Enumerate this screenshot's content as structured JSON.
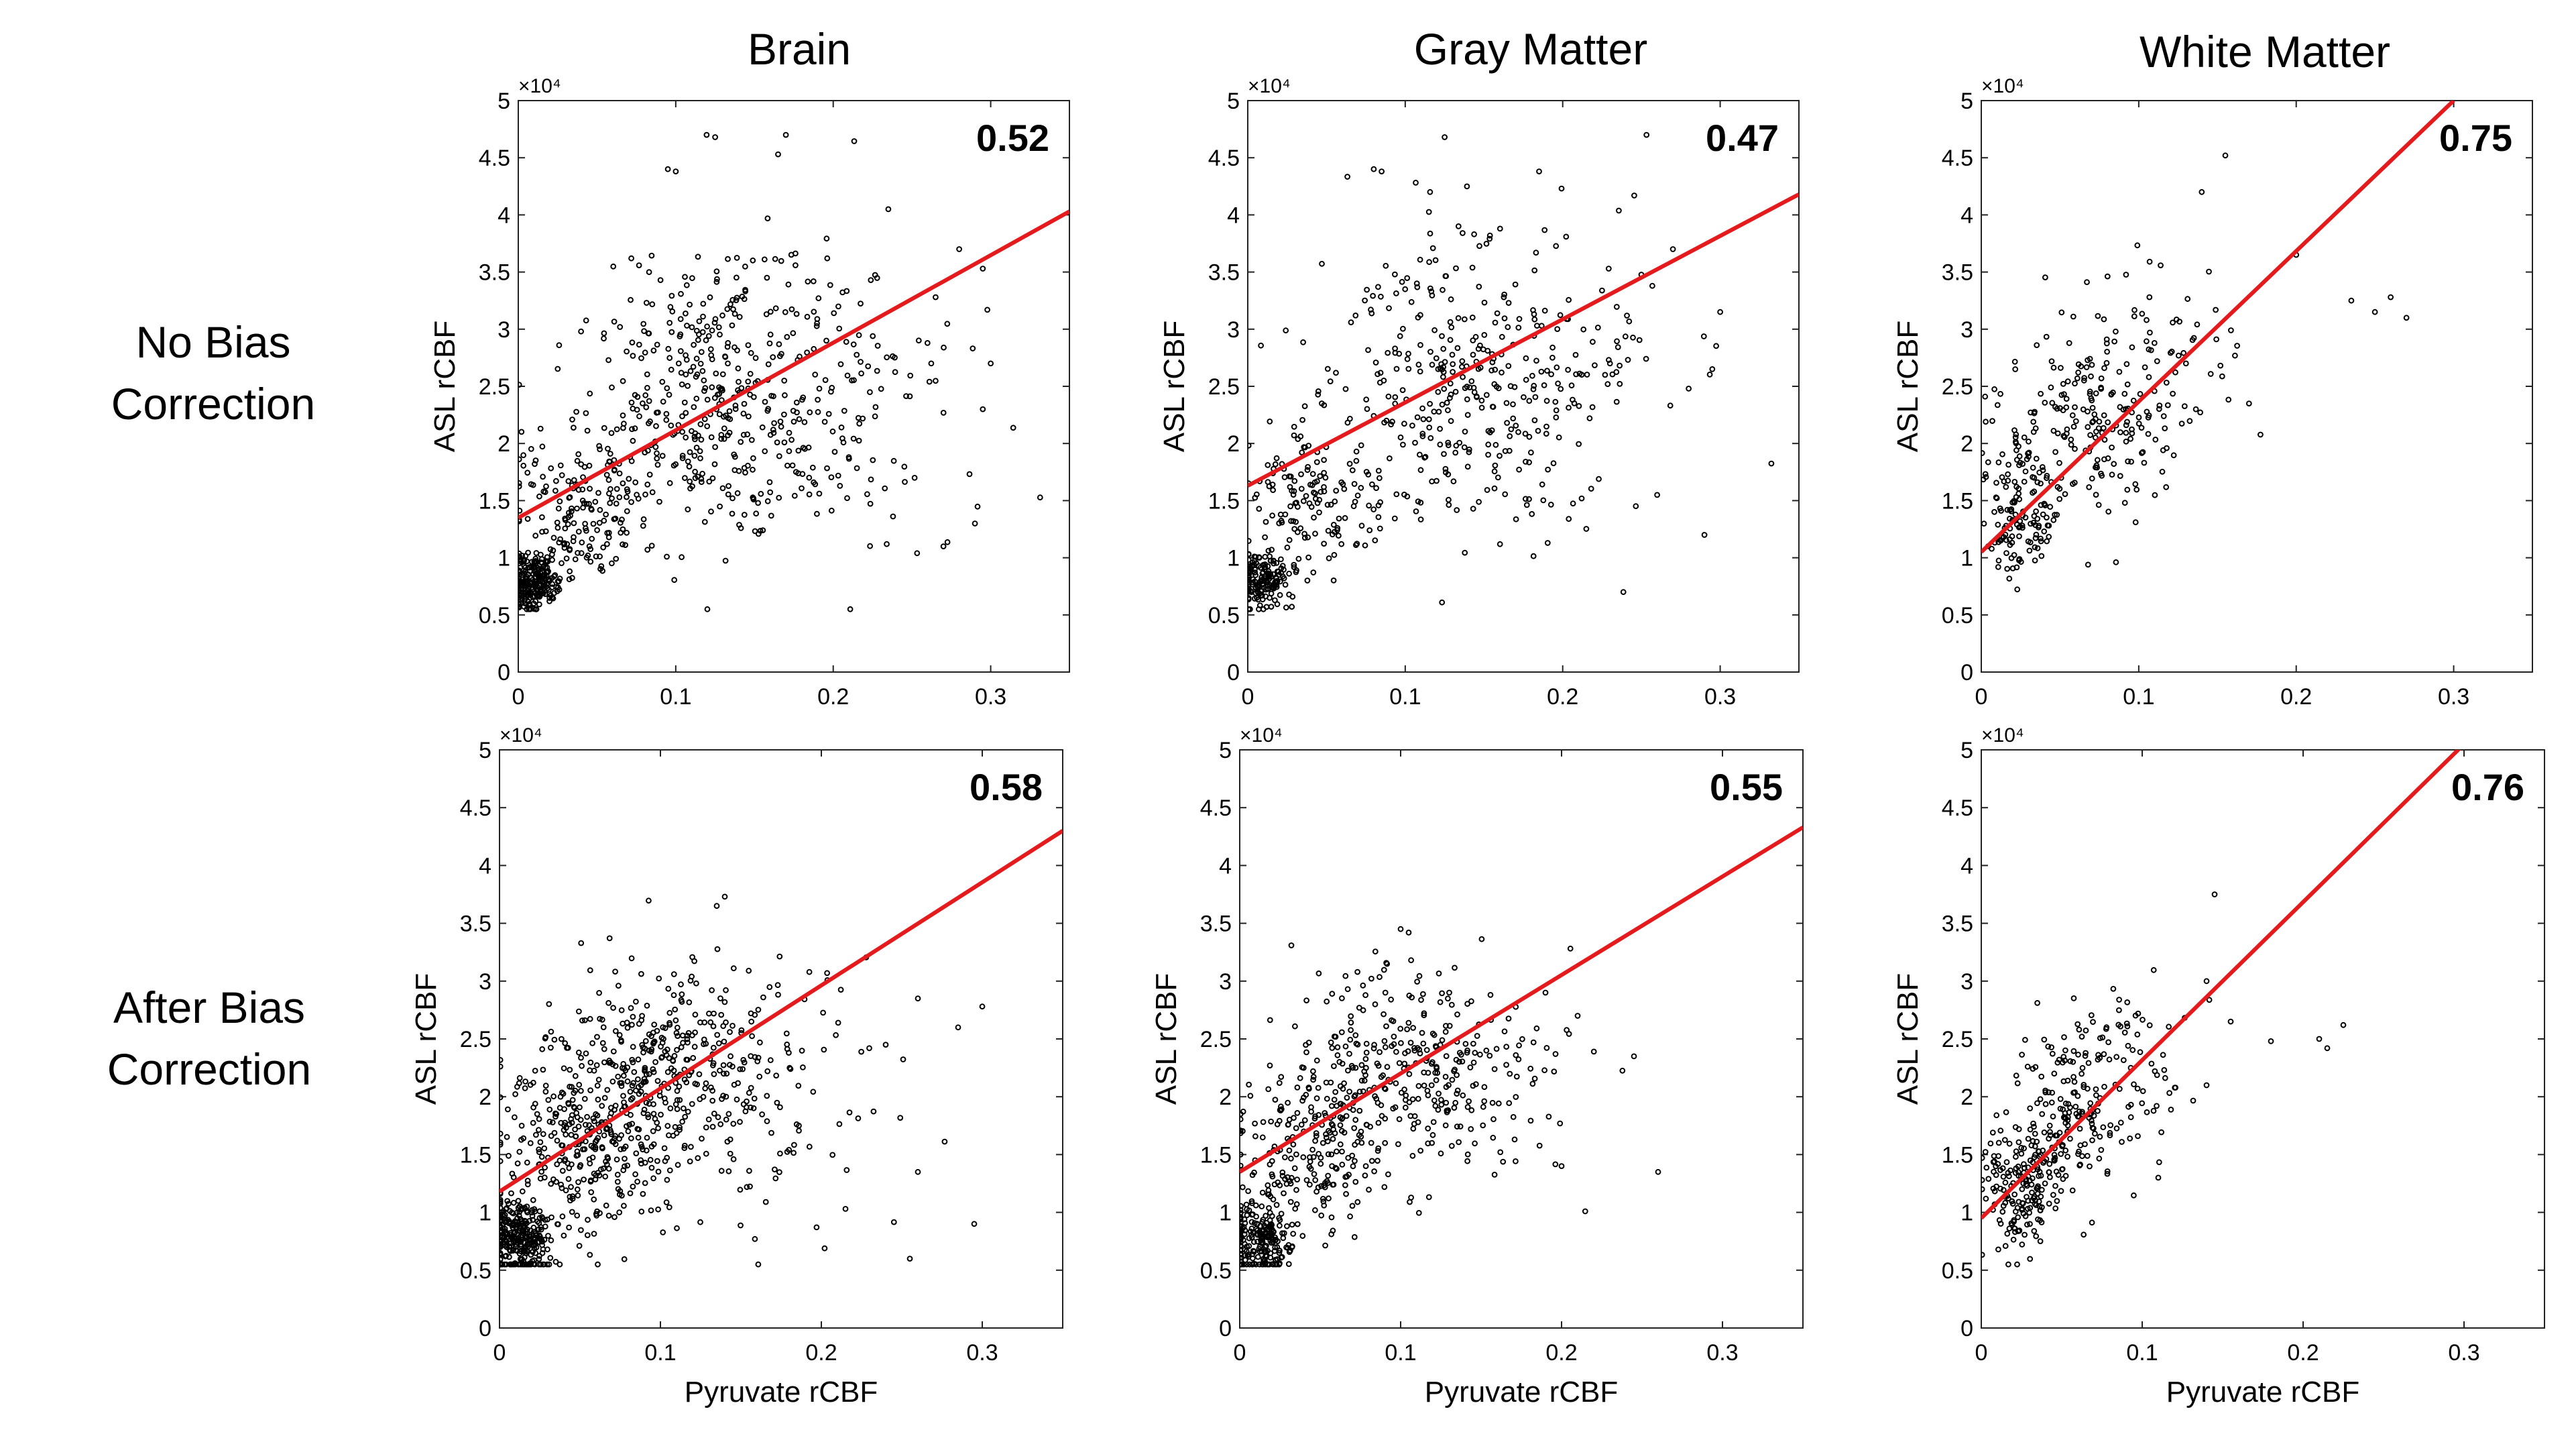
{
  "figure": {
    "column_titles": [
      "Brain",
      "Gray Matter",
      "White Matter"
    ],
    "row_labels": [
      {
        "line1": "No Bias",
        "line2": "Correction"
      },
      {
        "line1": "After Bias",
        "line2": "Correction"
      }
    ],
    "marker_color": "#000000",
    "fit_color": "#e41a1c"
  },
  "chart_data": [
    {
      "id": "brain-no-bias",
      "type": "scatter",
      "row": 0,
      "col": 0,
      "title": "Brain",
      "row_label": "No Bias Correction",
      "xlabel": "",
      "ylabel": "ASL rCBF",
      "xlim": [
        0,
        0.35
      ],
      "ylim": [
        0,
        50000
      ],
      "xticks": [
        0,
        0.1,
        0.2,
        0.3
      ],
      "xtick_labels": [
        "0",
        "0.1",
        "0.2",
        "0.3"
      ],
      "yticks": [
        0,
        5000,
        10000,
        15000,
        20000,
        25000,
        30000,
        35000,
        40000,
        45000,
        50000
      ],
      "ytick_labels": [
        "0",
        "0.5",
        "1",
        "1.5",
        "2",
        "2.5",
        "3",
        "3.5",
        "4",
        "4.5",
        "5"
      ],
      "y_exponent_label": "×10⁴",
      "correlation_label": "0.52",
      "fit_line": {
        "x": [
          0,
          0.35
        ],
        "y": [
          13500,
          40300
        ]
      },
      "point_cloud": {
        "count": 900,
        "seed": 11,
        "components": [
          {
            "weight": 0.22,
            "mean": [
              0.01,
              8000
            ],
            "sd": [
              0.008,
              1300
            ]
          },
          {
            "weight": 0.18,
            "mean": [
              0.04,
              14500
            ],
            "sd": [
              0.02,
              3000
            ]
          },
          {
            "weight": 0.45,
            "mean": [
              0.12,
              24000
            ],
            "sd": [
              0.045,
              6500
            ]
          },
          {
            "weight": 0.15,
            "mean": [
              0.19,
              25000
            ],
            "sd": [
              0.05,
              7000
            ]
          }
        ]
      },
      "extra_points": {
        "x": [
          0.095,
          0.1,
          0.125,
          0.165,
          0.235,
          0.265,
          0.28,
          0.295,
          0.3,
          0.27,
          0.29,
          0.295
        ],
        "y": [
          44000,
          43800,
          46800,
          45300,
          40500,
          32800,
          37000,
          35300,
          27000,
          11000,
          13000,
          23000
        ]
      }
    },
    {
      "id": "gray-no-bias",
      "type": "scatter",
      "row": 0,
      "col": 1,
      "title": "Gray Matter",
      "row_label": "No Bias Correction",
      "xlabel": "",
      "ylabel": "ASL rCBF",
      "xlim": [
        0,
        0.35
      ],
      "ylim": [
        0,
        50000
      ],
      "xticks": [
        0,
        0.1,
        0.2,
        0.3
      ],
      "xtick_labels": [
        "0",
        "0.1",
        "0.2",
        "0.3"
      ],
      "yticks": [
        0,
        5000,
        10000,
        15000,
        20000,
        25000,
        30000,
        35000,
        40000,
        45000,
        50000
      ],
      "ytick_labels": [
        "0",
        "0.5",
        "1",
        "1.5",
        "2",
        "2.5",
        "3",
        "3.5",
        "4",
        "4.5",
        "5"
      ],
      "y_exponent_label": "×10⁴",
      "correlation_label": "0.47",
      "fit_line": {
        "x": [
          0,
          0.35
        ],
        "y": [
          16300,
          41800
        ]
      },
      "point_cloud": {
        "count": 700,
        "seed": 23,
        "components": [
          {
            "weight": 0.22,
            "mean": [
              0.01,
              8000
            ],
            "sd": [
              0.008,
              1300
            ]
          },
          {
            "weight": 0.2,
            "mean": [
              0.04,
              15000
            ],
            "sd": [
              0.02,
              3200
            ]
          },
          {
            "weight": 0.43,
            "mean": [
              0.12,
              24500
            ],
            "sd": [
              0.045,
              6500
            ]
          },
          {
            "weight": 0.15,
            "mean": [
              0.19,
              25000
            ],
            "sd": [
              0.05,
              7000
            ]
          }
        ]
      },
      "extra_points": {
        "x": [
          0.08,
          0.085,
          0.125,
          0.185,
          0.27,
          0.3,
          0.295,
          0.28,
          0.26,
          0.23,
          0.29
        ],
        "y": [
          44000,
          43800,
          46800,
          43800,
          37000,
          31500,
          26500,
          24800,
          15500,
          27000,
          12000
        ]
      }
    },
    {
      "id": "white-no-bias",
      "type": "scatter",
      "row": 0,
      "col": 2,
      "title": "White Matter",
      "row_label": "No Bias Correction",
      "xlabel": "",
      "ylabel": "ASL rCBF",
      "xlim": [
        0,
        0.35
      ],
      "ylim": [
        0,
        50000
      ],
      "xticks": [
        0,
        0.1,
        0.2,
        0.3
      ],
      "xtick_labels": [
        "0",
        "0.1",
        "0.2",
        "0.3"
      ],
      "yticks": [
        0,
        5000,
        10000,
        15000,
        20000,
        25000,
        30000,
        35000,
        40000,
        45000,
        50000
      ],
      "ytick_labels": [
        "0",
        "0.5",
        "1",
        "1.5",
        "2",
        "2.5",
        "3",
        "3.5",
        "4",
        "4.5",
        "5"
      ],
      "y_exponent_label": "×10⁴",
      "correlation_label": "0.75",
      "fit_line": {
        "x": [
          0,
          0.3
        ],
        "y": [
          10500,
          50000
        ]
      },
      "point_cloud": {
        "count": 380,
        "seed": 37,
        "components": [
          {
            "weight": 0.4,
            "mean": [
              0.025,
              14000
            ],
            "sd": [
              0.012,
              3000
            ]
          },
          {
            "weight": 0.45,
            "mean": [
              0.07,
              21500
            ],
            "sd": [
              0.025,
              4200
            ]
          },
          {
            "weight": 0.15,
            "mean": [
              0.12,
              28000
            ],
            "sd": [
              0.025,
              4000
            ]
          }
        ]
      },
      "extra_points": {
        "x": [
          0.155,
          0.14,
          0.2,
          0.235,
          0.25,
          0.26,
          0.27,
          0.13,
          0.17
        ],
        "y": [
          45200,
          42000,
          36500,
          32500,
          31500,
          32800,
          31000,
          27000,
          23500
        ]
      }
    },
    {
      "id": "brain-after-bias",
      "type": "scatter",
      "row": 1,
      "col": 0,
      "title": "Brain",
      "row_label": "After Bias Correction",
      "xlabel": "Pyruvate rCBF",
      "ylabel": "ASL rCBF",
      "xlim": [
        0,
        0.35
      ],
      "ylim": [
        0,
        50000
      ],
      "xticks": [
        0,
        0.1,
        0.2,
        0.3
      ],
      "xtick_labels": [
        "0",
        "0.1",
        "0.2",
        "0.3"
      ],
      "yticks": [
        0,
        5000,
        10000,
        15000,
        20000,
        25000,
        30000,
        35000,
        40000,
        45000,
        50000
      ],
      "ytick_labels": [
        "0",
        "0.5",
        "1",
        "1.5",
        "2",
        "2.5",
        "3",
        "3.5",
        "4",
        "4.5",
        "5"
      ],
      "y_exponent_label": "×10⁴",
      "correlation_label": "0.58",
      "fit_line": {
        "x": [
          0,
          0.35
        ],
        "y": [
          11800,
          43000
        ]
      },
      "point_cloud": {
        "count": 1000,
        "seed": 51,
        "components": [
          {
            "weight": 0.3,
            "mean": [
              0.012,
              7500
            ],
            "sd": [
              0.01,
              1800
            ]
          },
          {
            "weight": 0.25,
            "mean": [
              0.05,
              15000
            ],
            "sd": [
              0.025,
              3500
            ]
          },
          {
            "weight": 0.35,
            "mean": [
              0.1,
              22000
            ],
            "sd": [
              0.035,
              4500
            ]
          },
          {
            "weight": 0.1,
            "mean": [
              0.16,
              20000
            ],
            "sd": [
              0.04,
              5500
            ]
          }
        ]
      },
      "extra_points": {
        "x": [
          0.14,
          0.135,
          0.26,
          0.3,
          0.285,
          0.26,
          0.295,
          0.255,
          0.215,
          0.24
        ],
        "y": [
          37300,
          36500,
          28500,
          27800,
          26000,
          13500,
          9000,
          6000,
          10300,
          24500
        ]
      }
    },
    {
      "id": "gray-after-bias",
      "type": "scatter",
      "row": 1,
      "col": 1,
      "title": "Gray Matter",
      "row_label": "After Bias Correction",
      "xlabel": "Pyruvate rCBF",
      "ylabel": "ASL rCBF",
      "xlim": [
        0,
        0.35
      ],
      "ylim": [
        0,
        50000
      ],
      "xticks": [
        0,
        0.1,
        0.2,
        0.3
      ],
      "xtick_labels": [
        "0",
        "0.1",
        "0.2",
        "0.3"
      ],
      "yticks": [
        0,
        5000,
        10000,
        15000,
        20000,
        25000,
        30000,
        35000,
        40000,
        45000,
        50000
      ],
      "ytick_labels": [
        "0",
        "0.5",
        "1",
        "1.5",
        "2",
        "2.5",
        "3",
        "3.5",
        "4",
        "4.5",
        "5"
      ],
      "y_exponent_label": "×10⁴",
      "correlation_label": "0.55",
      "fit_line": {
        "x": [
          0,
          0.35
        ],
        "y": [
          13500,
          43300
        ]
      },
      "point_cloud": {
        "count": 750,
        "seed": 67,
        "components": [
          {
            "weight": 0.28,
            "mean": [
              0.012,
              7500
            ],
            "sd": [
              0.01,
              1800
            ]
          },
          {
            "weight": 0.27,
            "mean": [
              0.05,
              16000
            ],
            "sd": [
              0.025,
              3600
            ]
          },
          {
            "weight": 0.35,
            "mean": [
              0.1,
              22500
            ],
            "sd": [
              0.035,
              4500
            ]
          },
          {
            "weight": 0.1,
            "mean": [
              0.15,
              21000
            ],
            "sd": [
              0.035,
              5000
            ]
          }
        ]
      },
      "extra_points": {
        "x": [
          0.1,
          0.105,
          0.19,
          0.245,
          0.26,
          0.2,
          0.21
        ],
        "y": [
          34500,
          34200,
          29000,
          23500,
          13500,
          14000,
          27000
        ]
      }
    },
    {
      "id": "white-after-bias",
      "type": "scatter",
      "row": 1,
      "col": 2,
      "title": "White Matter",
      "row_label": "After Bias Correction",
      "xlabel": "Pyruvate rCBF",
      "ylabel": "ASL rCBF",
      "xlim": [
        0,
        0.35
      ],
      "ylim": [
        0,
        50000
      ],
      "xticks": [
        0,
        0.1,
        0.2,
        0.3
      ],
      "xtick_labels": [
        "0",
        "0.1",
        "0.2",
        "0.3"
      ],
      "yticks": [
        0,
        5000,
        10000,
        15000,
        20000,
        25000,
        30000,
        35000,
        40000,
        45000,
        50000
      ],
      "ytick_labels": [
        "0",
        "0.5",
        "1",
        "1.5",
        "2",
        "2.5",
        "3",
        "3.5",
        "4",
        "4.5",
        "5"
      ],
      "y_exponent_label": "×10⁴",
      "correlation_label": "0.76",
      "fit_line": {
        "x": [
          0,
          0.3
        ],
        "y": [
          9500,
          50500
        ]
      },
      "point_cloud": {
        "count": 400,
        "seed": 83,
        "components": [
          {
            "weight": 0.45,
            "mean": [
              0.025,
              12500
            ],
            "sd": [
              0.012,
              2700
            ]
          },
          {
            "weight": 0.42,
            "mean": [
              0.06,
              19000
            ],
            "sd": [
              0.02,
              3800
            ]
          },
          {
            "weight": 0.13,
            "mean": [
              0.1,
              23000
            ],
            "sd": [
              0.02,
              3500
            ]
          }
        ]
      },
      "extra_points": {
        "x": [
          0.145,
          0.14,
          0.155,
          0.18,
          0.21,
          0.215,
          0.225,
          0.14,
          0.11
        ],
        "y": [
          37500,
          30000,
          26500,
          24800,
          25000,
          24200,
          26200,
          21000,
          13000
        ]
      }
    }
  ]
}
